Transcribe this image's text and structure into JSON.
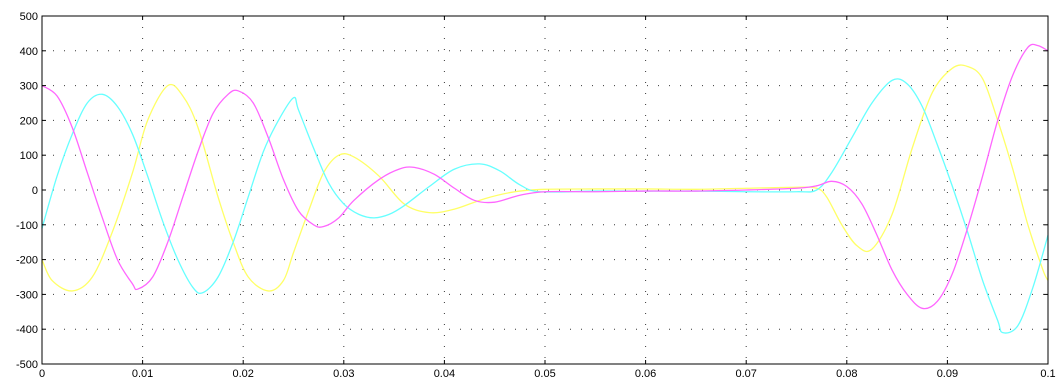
{
  "chart_data": {
    "type": "line",
    "title": "",
    "xlabel": "",
    "ylabel": "",
    "xlim": [
      0,
      0.1
    ],
    "ylim": [
      -500,
      500
    ],
    "grid": true,
    "legend": "none",
    "x_ticks": [
      "0",
      "0.01",
      "0.02",
      "0.03",
      "0.04",
      "0.05",
      "0.06",
      "0.07",
      "0.08",
      "0.09",
      "0.1"
    ],
    "y_ticks": [
      "500",
      "400",
      "300",
      "200",
      "100",
      "0",
      "-100",
      "-200",
      "-300",
      "-400",
      "-500"
    ],
    "series": [
      {
        "color": "#ffff66",
        "points": [
          [
            0,
            -200
          ],
          [
            0.001,
            -260
          ],
          [
            0.003,
            -290
          ],
          [
            0.005,
            -250
          ],
          [
            0.007,
            -120
          ],
          [
            0.009,
            50
          ],
          [
            0.0105,
            200
          ],
          [
            0.0125,
            300
          ],
          [
            0.014,
            270
          ],
          [
            0.0155,
            180
          ],
          [
            0.0175,
            -20
          ],
          [
            0.019,
            -150
          ],
          [
            0.0205,
            -250
          ],
          [
            0.0225,
            -290
          ],
          [
            0.024,
            -260
          ],
          [
            0.025,
            -180
          ],
          [
            0.0265,
            -60
          ],
          [
            0.028,
            50
          ],
          [
            0.0295,
            100
          ],
          [
            0.031,
            95
          ],
          [
            0.0335,
            40
          ],
          [
            0.036,
            -40
          ],
          [
            0.0385,
            -65
          ],
          [
            0.041,
            -55
          ],
          [
            0.044,
            -25
          ],
          [
            0.047,
            -5
          ],
          [
            0.05,
            2
          ],
          [
            0.055,
            3
          ],
          [
            0.06,
            3
          ],
          [
            0.065,
            2
          ],
          [
            0.07,
            5
          ],
          [
            0.075,
            8
          ],
          [
            0.077,
            5
          ],
          [
            0.078,
            -20
          ],
          [
            0.0795,
            -100
          ],
          [
            0.081,
            -160
          ],
          [
            0.0825,
            -170
          ],
          [
            0.0845,
            -70
          ],
          [
            0.0865,
            120
          ],
          [
            0.0885,
            280
          ],
          [
            0.0905,
            350
          ],
          [
            0.092,
            355
          ],
          [
            0.0935,
            320
          ],
          [
            0.095,
            200
          ],
          [
            0.0965,
            60
          ],
          [
            0.098,
            -100
          ],
          [
            0.0995,
            -230
          ],
          [
            0.1,
            -260
          ]
        ]
      },
      {
        "color": "#66ffff",
        "points": [
          [
            0,
            -110
          ],
          [
            0.0015,
            40
          ],
          [
            0.003,
            160
          ],
          [
            0.0045,
            250
          ],
          [
            0.006,
            275
          ],
          [
            0.0075,
            240
          ],
          [
            0.009,
            160
          ],
          [
            0.0105,
            40
          ],
          [
            0.012,
            -90
          ],
          [
            0.0135,
            -200
          ],
          [
            0.015,
            -280
          ],
          [
            0.016,
            -295
          ],
          [
            0.0175,
            -250
          ],
          [
            0.019,
            -150
          ],
          [
            0.0205,
            -20
          ],
          [
            0.022,
            110
          ],
          [
            0.0235,
            200
          ],
          [
            0.025,
            265
          ],
          [
            0.0255,
            230
          ],
          [
            0.027,
            120
          ],
          [
            0.0285,
            20
          ],
          [
            0.03,
            -40
          ],
          [
            0.0315,
            -70
          ],
          [
            0.033,
            -80
          ],
          [
            0.0345,
            -70
          ],
          [
            0.036,
            -45
          ],
          [
            0.0385,
            10
          ],
          [
            0.041,
            60
          ],
          [
            0.0435,
            75
          ],
          [
            0.0455,
            55
          ],
          [
            0.0475,
            15
          ],
          [
            0.0495,
            -5
          ],
          [
            0.055,
            -3
          ],
          [
            0.06,
            -3
          ],
          [
            0.065,
            -3
          ],
          [
            0.07,
            -5
          ],
          [
            0.075,
            -5
          ],
          [
            0.077,
            0
          ],
          [
            0.0785,
            50
          ],
          [
            0.0805,
            150
          ],
          [
            0.0825,
            250
          ],
          [
            0.0845,
            315
          ],
          [
            0.086,
            305
          ],
          [
            0.0875,
            240
          ],
          [
            0.089,
            130
          ],
          [
            0.0905,
            10
          ],
          [
            0.092,
            -120
          ],
          [
            0.0935,
            -260
          ],
          [
            0.095,
            -375
          ],
          [
            0.0955,
            -410
          ],
          [
            0.097,
            -390
          ],
          [
            0.0985,
            -280
          ],
          [
            0.1,
            -130
          ]
        ]
      },
      {
        "color": "#ff66ff",
        "points": [
          [
            0,
            300
          ],
          [
            0.0015,
            270
          ],
          [
            0.003,
            180
          ],
          [
            0.0045,
            50
          ],
          [
            0.006,
            -80
          ],
          [
            0.0075,
            -200
          ],
          [
            0.009,
            -270
          ],
          [
            0.0095,
            -285
          ],
          [
            0.011,
            -250
          ],
          [
            0.0125,
            -150
          ],
          [
            0.014,
            -20
          ],
          [
            0.0155,
            110
          ],
          [
            0.017,
            220
          ],
          [
            0.0185,
            275
          ],
          [
            0.0195,
            285
          ],
          [
            0.021,
            250
          ],
          [
            0.0225,
            150
          ],
          [
            0.024,
            30
          ],
          [
            0.0255,
            -60
          ],
          [
            0.027,
            -100
          ],
          [
            0.028,
            -105
          ],
          [
            0.0295,
            -80
          ],
          [
            0.031,
            -30
          ],
          [
            0.0335,
            30
          ],
          [
            0.0355,
            60
          ],
          [
            0.037,
            65
          ],
          [
            0.039,
            45
          ],
          [
            0.041,
            5
          ],
          [
            0.043,
            -30
          ],
          [
            0.045,
            -35
          ],
          [
            0.0475,
            -15
          ],
          [
            0.05,
            -5
          ],
          [
            0.055,
            -5
          ],
          [
            0.06,
            -3
          ],
          [
            0.065,
            -3
          ],
          [
            0.07,
            0
          ],
          [
            0.075,
            5
          ],
          [
            0.077,
            12
          ],
          [
            0.0785,
            25
          ],
          [
            0.08,
            10
          ],
          [
            0.0815,
            -40
          ],
          [
            0.083,
            -130
          ],
          [
            0.0845,
            -230
          ],
          [
            0.086,
            -300
          ],
          [
            0.0875,
            -340
          ],
          [
            0.089,
            -320
          ],
          [
            0.0905,
            -240
          ],
          [
            0.092,
            -110
          ],
          [
            0.0935,
            40
          ],
          [
            0.095,
            200
          ],
          [
            0.0965,
            330
          ],
          [
            0.098,
            410
          ],
          [
            0.099,
            415
          ],
          [
            0.1,
            400
          ]
        ]
      }
    ]
  }
}
